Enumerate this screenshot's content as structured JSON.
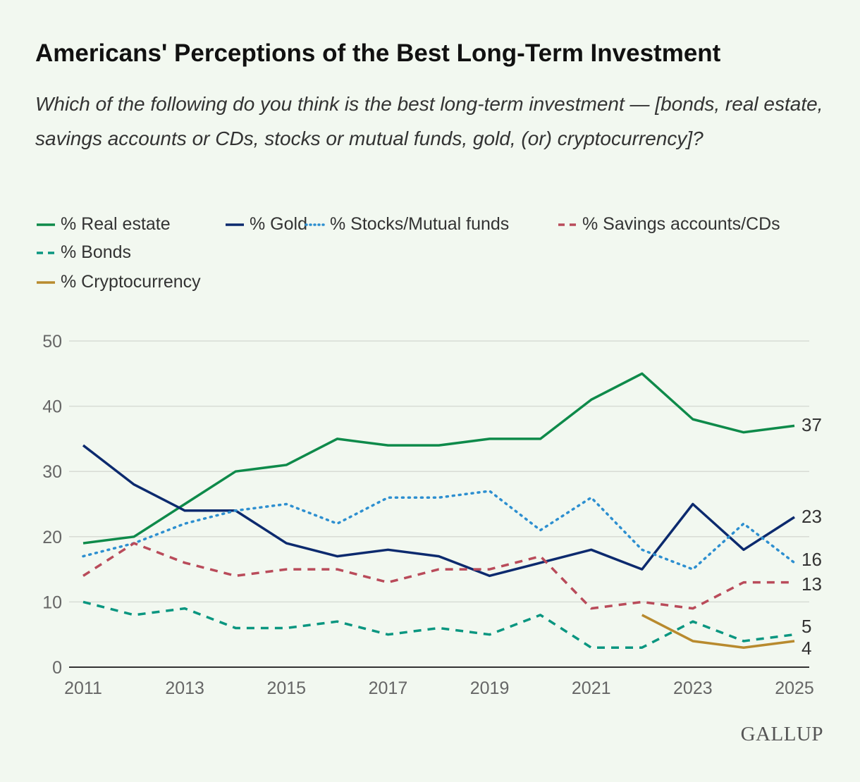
{
  "title": "Americans' Perceptions of the Best Long-Term Investment",
  "subtitle": "Which of the following do you think is the best long-term investment — [bonds, real estate, savings accounts or CDs, stocks or mutual funds, gold, (or) cryptocurrency]?",
  "logo": "GALLUP",
  "chart_data": {
    "type": "line",
    "title": "Americans' Perceptions of the Best Long-Term Investment",
    "xlabel": "",
    "ylabel": "",
    "x": [
      2011,
      2012,
      2013,
      2014,
      2015,
      2016,
      2017,
      2018,
      2019,
      2020,
      2021,
      2022,
      2023,
      2024,
      2025
    ],
    "xticks": [
      "2011",
      "2013",
      "2015",
      "2017",
      "2019",
      "2021",
      "2023",
      "2025"
    ],
    "yticks": [
      "0",
      "10",
      "20",
      "30",
      "40",
      "50"
    ],
    "ylim": [
      0,
      50
    ],
    "grid": "horizontal",
    "legend_position": "top-left",
    "series": [
      {
        "name": "% Real estate",
        "color": "#0e8a4a",
        "style": "solid",
        "values": [
          19,
          20,
          25,
          30,
          31,
          35,
          34,
          34,
          35,
          35,
          41,
          45,
          38,
          36,
          37
        ],
        "end_label": "37"
      },
      {
        "name": "% Gold",
        "color": "#0c2a6e",
        "style": "solid",
        "values": [
          34,
          28,
          24,
          24,
          19,
          17,
          18,
          17,
          14,
          16,
          18,
          15,
          25,
          18,
          23
        ],
        "end_label": "23"
      },
      {
        "name": "% Stocks/Mutual funds",
        "color": "#2d8fd0",
        "style": "dotted",
        "values": [
          17,
          19,
          22,
          24,
          25,
          22,
          26,
          26,
          27,
          21,
          26,
          18,
          15,
          22,
          16
        ],
        "end_label": "16"
      },
      {
        "name": "% Savings accounts/CDs",
        "color": "#b94b5a",
        "style": "dashed",
        "values": [
          14,
          19,
          16,
          14,
          15,
          15,
          13,
          15,
          15,
          17,
          9,
          10,
          9,
          13,
          13
        ],
        "end_label": "13"
      },
      {
        "name": "% Bonds",
        "color": "#0a9680",
        "style": "dashed",
        "values": [
          10,
          8,
          9,
          6,
          6,
          7,
          5,
          6,
          5,
          8,
          3,
          3,
          7,
          4,
          5
        ],
        "end_label": "5"
      },
      {
        "name": "% Cryptocurrency",
        "color": "#b88a2e",
        "style": "solid",
        "values": [
          null,
          null,
          null,
          null,
          null,
          null,
          null,
          null,
          null,
          null,
          null,
          8,
          4,
          3,
          4
        ],
        "end_label": "4"
      }
    ]
  }
}
